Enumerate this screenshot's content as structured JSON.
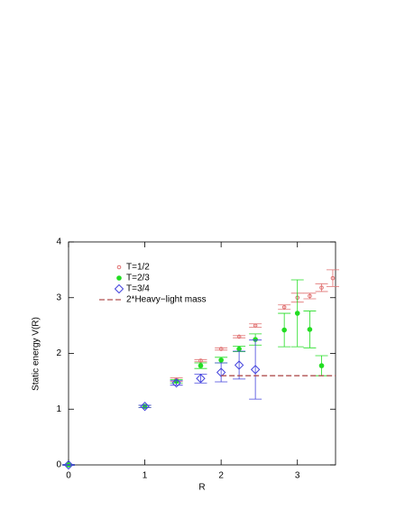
{
  "chart_data": {
    "type": "scatter",
    "x_label": "R",
    "y_label": "Static energy V(R)",
    "xlim": [
      0,
      3.5
    ],
    "ylim": [
      0,
      4
    ],
    "xticks": [
      0,
      1,
      2,
      3
    ],
    "yticks": [
      0,
      1,
      2,
      3,
      4
    ],
    "legend": "upper left",
    "series": [
      {
        "name": "T=1/2",
        "color": "#e07070",
        "marker": "open-circle",
        "x": [
          0,
          1,
          1.414,
          1.732,
          2,
          2.236,
          2.449,
          2.828,
          3,
          3.162,
          3.317,
          3.464
        ],
        "values": [
          0,
          1.05,
          1.53,
          1.87,
          2.08,
          2.3,
          2.5,
          2.83,
          3.0,
          3.03,
          3.18,
          3.35
        ],
        "errors": [
          0.01,
          0.02,
          0.03,
          0.02,
          0.02,
          0.02,
          0.03,
          0.04,
          0.08,
          0.05,
          0.07,
          0.15
        ]
      },
      {
        "name": "T=2/3",
        "color": "#22dd22",
        "marker": "filled-circle",
        "x": [
          0,
          1,
          1.414,
          1.732,
          2,
          2.236,
          2.449,
          2.828,
          3,
          3.162,
          3.317
        ],
        "values": [
          0,
          1.05,
          1.5,
          1.78,
          1.88,
          2.08,
          2.25,
          2.42,
          2.72,
          2.43,
          1.78
        ],
        "errors": [
          0.01,
          0.02,
          0.03,
          0.05,
          0.05,
          0.05,
          0.1,
          0.3,
          0.6,
          0.33,
          0.18
        ]
      },
      {
        "name": "T=3/4",
        "color": "#4444dd",
        "marker": "diamond",
        "x": [
          0,
          1,
          1.414,
          1.732,
          2,
          2.236,
          2.449
        ],
        "values": [
          0,
          1.05,
          1.47,
          1.55,
          1.66,
          1.79,
          1.71
        ],
        "errors": [
          0.01,
          0.02,
          0.04,
          0.08,
          0.17,
          0.25,
          0.53
        ]
      },
      {
        "name": "2*Heavy−light mass",
        "color": "#b05050",
        "marker": "dashed-line",
        "x": [
          2,
          3.5
        ],
        "values": [
          1.6,
          1.6
        ]
      }
    ]
  }
}
